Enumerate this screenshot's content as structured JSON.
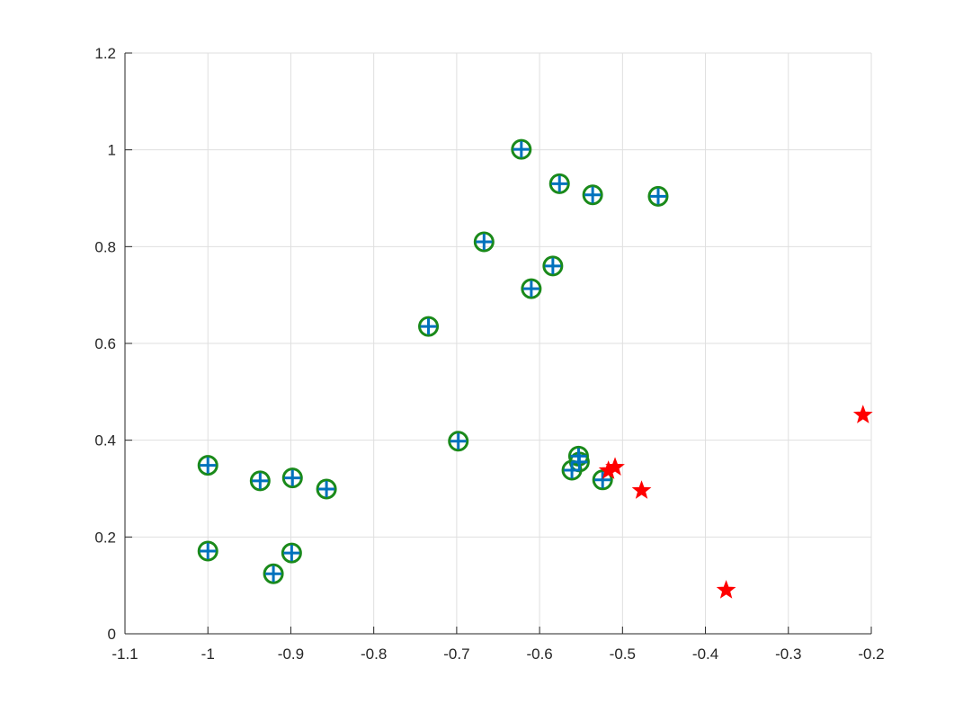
{
  "chart_data": {
    "type": "scatter",
    "title": "",
    "xlabel": "",
    "ylabel": "",
    "xlim": [
      -1.1,
      -0.2
    ],
    "ylim": [
      0,
      1.2
    ],
    "grid": true,
    "x_ticks": [
      -1.1,
      -1,
      -0.9,
      -0.8,
      -0.7,
      -0.6,
      -0.5,
      -0.4,
      -0.3,
      -0.2
    ],
    "y_ticks": [
      0,
      0.2,
      0.4,
      0.6,
      0.8,
      1,
      1.2
    ],
    "x_tick_labels": [
      "-1.1",
      "-1",
      "-0.9",
      "-0.8",
      "-0.7",
      "-0.6",
      "-0.5",
      "-0.4",
      "-0.3",
      "-0.2"
    ],
    "y_tick_labels": [
      "0",
      "0.2",
      "0.4",
      "0.6",
      "0.8",
      "1",
      "1.2"
    ],
    "series": [
      {
        "marker": "circle",
        "color": "#1a8a1a",
        "points": [
          {
            "x": -1.0,
            "y": 0.348
          },
          {
            "x": -1.0,
            "y": 0.171
          },
          {
            "x": -0.937,
            "y": 0.316
          },
          {
            "x": -0.898,
            "y": 0.322
          },
          {
            "x": -0.857,
            "y": 0.299
          },
          {
            "x": -0.899,
            "y": 0.167
          },
          {
            "x": -0.921,
            "y": 0.124
          },
          {
            "x": -0.734,
            "y": 0.635
          },
          {
            "x": -0.698,
            "y": 0.398
          },
          {
            "x": -0.667,
            "y": 0.81
          },
          {
            "x": -0.622,
            "y": 1.001
          },
          {
            "x": -0.576,
            "y": 0.93
          },
          {
            "x": -0.536,
            "y": 0.907
          },
          {
            "x": -0.457,
            "y": 0.904
          },
          {
            "x": -0.584,
            "y": 0.76
          },
          {
            "x": -0.61,
            "y": 0.713
          },
          {
            "x": -0.553,
            "y": 0.367
          },
          {
            "x": -0.552,
            "y": 0.355
          },
          {
            "x": -0.561,
            "y": 0.338
          },
          {
            "x": -0.524,
            "y": 0.318
          }
        ]
      },
      {
        "marker": "plus",
        "color": "#0072bd",
        "points": [
          {
            "x": -1.0,
            "y": 0.348
          },
          {
            "x": -1.0,
            "y": 0.171
          },
          {
            "x": -0.937,
            "y": 0.316
          },
          {
            "x": -0.898,
            "y": 0.322
          },
          {
            "x": -0.857,
            "y": 0.299
          },
          {
            "x": -0.899,
            "y": 0.167
          },
          {
            "x": -0.921,
            "y": 0.124
          },
          {
            "x": -0.734,
            "y": 0.635
          },
          {
            "x": -0.698,
            "y": 0.398
          },
          {
            "x": -0.667,
            "y": 0.81
          },
          {
            "x": -0.622,
            "y": 1.001
          },
          {
            "x": -0.576,
            "y": 0.93
          },
          {
            "x": -0.536,
            "y": 0.907
          },
          {
            "x": -0.457,
            "y": 0.904
          },
          {
            "x": -0.584,
            "y": 0.76
          },
          {
            "x": -0.61,
            "y": 0.713
          },
          {
            "x": -0.553,
            "y": 0.367
          },
          {
            "x": -0.552,
            "y": 0.355
          },
          {
            "x": -0.561,
            "y": 0.338
          },
          {
            "x": -0.524,
            "y": 0.318
          }
        ]
      },
      {
        "marker": "star",
        "color": "#ff0000",
        "points": [
          {
            "x": -0.517,
            "y": 0.337
          },
          {
            "x": -0.509,
            "y": 0.344
          },
          {
            "x": -0.477,
            "y": 0.296
          },
          {
            "x": -0.375,
            "y": 0.09
          },
          {
            "x": -0.21,
            "y": 0.452
          }
        ]
      }
    ]
  }
}
